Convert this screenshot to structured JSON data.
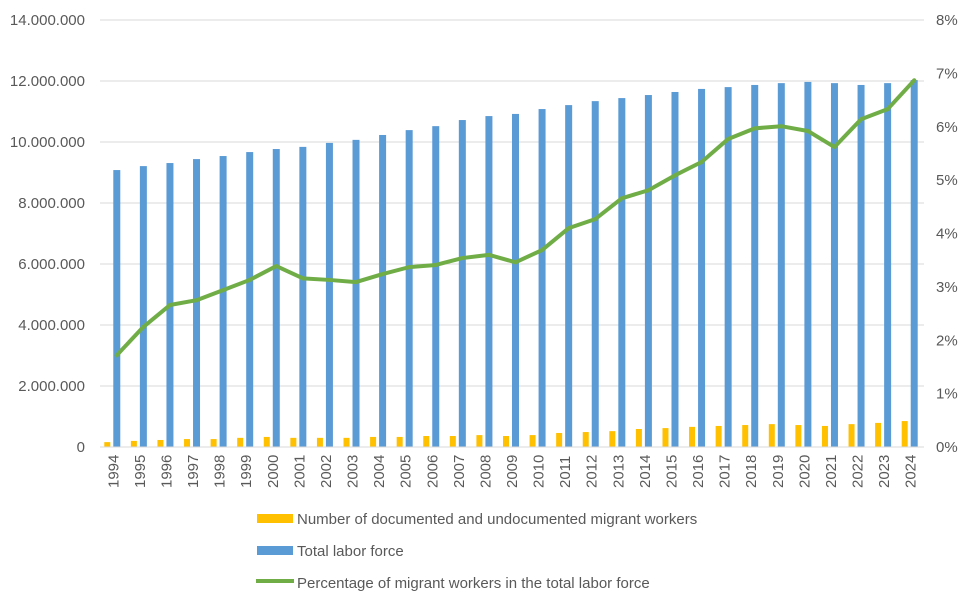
{
  "chart_data": {
    "type": "bar",
    "title": "",
    "xlabel": "",
    "ylabel": "",
    "y2label": "",
    "grid": true,
    "legend_position": "bottom",
    "categories": [
      "1994",
      "1995",
      "1996",
      "1997",
      "1998",
      "1999",
      "2000",
      "2001",
      "2002",
      "2003",
      "2004",
      "2005",
      "2006",
      "2007",
      "2008",
      "2009",
      "2010",
      "2011",
      "2012",
      "2013",
      "2014",
      "2015",
      "2016",
      "2017",
      "2018",
      "2019",
      "2020",
      "2021",
      "2022",
      "2023",
      "2024"
    ],
    "ylim": [
      0,
      14000000
    ],
    "y_ticks": [
      0,
      2000000,
      4000000,
      6000000,
      8000000,
      10000000,
      12000000,
      14000000
    ],
    "y_tick_labels": [
      "0",
      "2.000.000",
      "4.000.000",
      "6.000.000",
      "8.000.000",
      "10.000.000",
      "12.000.000",
      "14.000.000"
    ],
    "y2lim": [
      0,
      8
    ],
    "y2_ticks": [
      0,
      1,
      2,
      3,
      4,
      5,
      6,
      7,
      8
    ],
    "y2_tick_labels": [
      "0%",
      "1%",
      "2%",
      "3%",
      "4%",
      "5%",
      "6%",
      "7%",
      "8%"
    ],
    "series": [
      {
        "name": "Number of documented and undocumented migrant workers",
        "type": "bar",
        "axis": "left",
        "color": "#FFC000",
        "values": [
          160000,
          200000,
          230000,
          260000,
          260000,
          300000,
          330000,
          300000,
          300000,
          300000,
          330000,
          330000,
          360000,
          360000,
          390000,
          360000,
          390000,
          460000,
          490000,
          520000,
          590000,
          620000,
          660000,
          690000,
          720000,
          750000,
          720000,
          690000,
          750000,
          790000,
          850000
        ]
      },
      {
        "name": "Total labor force",
        "type": "bar",
        "axis": "left",
        "color": "#5B9BD5",
        "values": [
          9080000,
          9210000,
          9310000,
          9440000,
          9540000,
          9670000,
          9770000,
          9840000,
          9970000,
          10070000,
          10230000,
          10390000,
          10520000,
          10720000,
          10850000,
          10920000,
          11080000,
          11210000,
          11340000,
          11440000,
          11540000,
          11640000,
          11740000,
          11800000,
          11870000,
          11930000,
          11970000,
          11930000,
          11870000,
          11930000,
          12030000
        ]
      },
      {
        "name": "Percentage of migrant workers in the total labor force",
        "type": "line",
        "axis": "right",
        "color": "#70AD47",
        "values": [
          1.72,
          2.25,
          2.66,
          2.75,
          2.94,
          3.13,
          3.39,
          3.16,
          3.13,
          3.09,
          3.24,
          3.37,
          3.41,
          3.54,
          3.6,
          3.46,
          3.69,
          4.1,
          4.27,
          4.66,
          4.81,
          5.09,
          5.34,
          5.77,
          5.97,
          6.01,
          5.92,
          5.62,
          6.14,
          6.33,
          6.87
        ]
      }
    ]
  }
}
